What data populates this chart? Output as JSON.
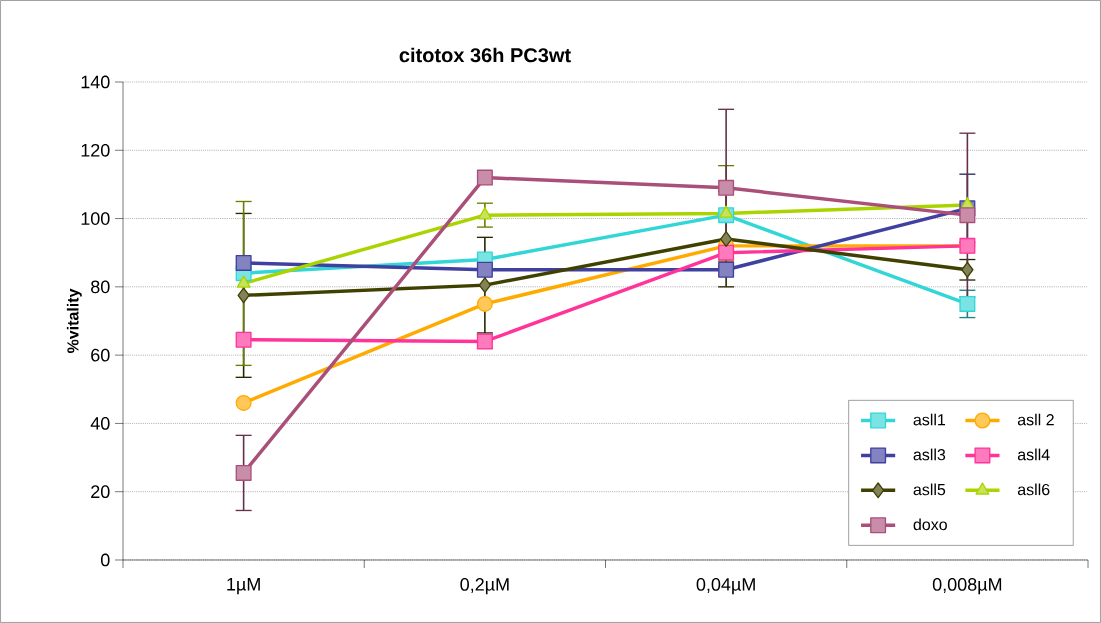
{
  "chart_data": {
    "type": "line",
    "title": "citotox 36h PC3wt",
    "ylabel": "%vitality",
    "categories": [
      "1µM",
      "0,2µM",
      "0,04µM",
      "0,008µM"
    ],
    "ylim": [
      0,
      140
    ],
    "yticks": [
      0,
      20,
      40,
      60,
      80,
      100,
      120,
      140
    ],
    "grid": "y",
    "legend": "bottom right",
    "line_style": "solid",
    "series": [
      {
        "name": "asll1",
        "color": "#33d6d6",
        "marker": "square",
        "values": [
          84,
          88,
          101,
          75
        ],
        "errors": [
          null,
          null,
          null,
          4
        ]
      },
      {
        "name": "asll 2",
        "color": "#ffaa00",
        "marker": "circle",
        "values": [
          46,
          75,
          92,
          92
        ]
      },
      {
        "name": "asll3",
        "color": "#4040a0",
        "marker": "square",
        "values": [
          87,
          85,
          85,
          103
        ],
        "errors": [
          null,
          null,
          null,
          10
        ]
      },
      {
        "name": "asll4",
        "color": "#ff3399",
        "marker": "square",
        "values": [
          64.5,
          64,
          90,
          92
        ],
        "errors": [
          null,
          2,
          null,
          null
        ]
      },
      {
        "name": "asll5",
        "color": "#404000",
        "marker": "diamond",
        "values": [
          77.5,
          80.5,
          94,
          85
        ],
        "errors": [
          24,
          14,
          14,
          3
        ]
      },
      {
        "name": "asll6",
        "color": "#aad400",
        "marker": "triangle",
        "values": [
          81,
          101,
          101.5,
          104
        ],
        "errors": [
          24,
          3.5,
          14,
          null
        ]
      },
      {
        "name": "doxo",
        "color": "#aa4f7a",
        "marker": "square",
        "values": [
          25.5,
          112,
          109,
          101
        ],
        "errors": [
          11,
          null,
          23,
          24
        ]
      }
    ]
  }
}
